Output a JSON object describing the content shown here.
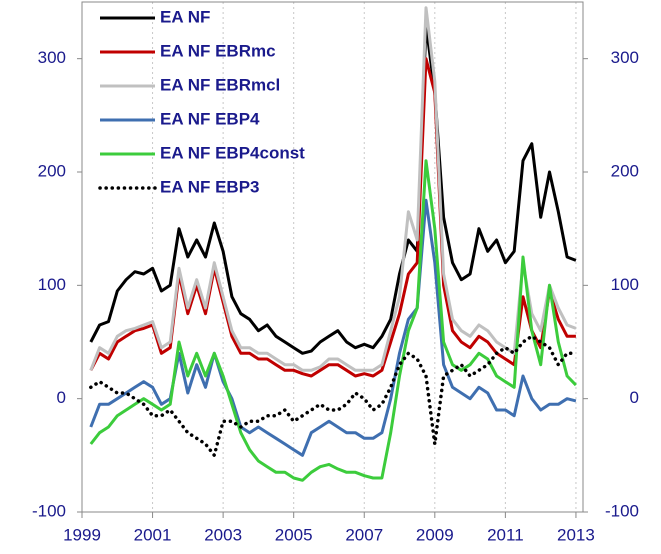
{
  "chart_data": {
    "type": "line",
    "x": [
      1999.25,
      1999.5,
      1999.75,
      2000,
      2000.25,
      2000.5,
      2000.75,
      2001,
      2001.25,
      2001.5,
      2001.75,
      2002,
      2002.25,
      2002.5,
      2002.75,
      2003,
      2003.25,
      2003.5,
      2003.75,
      2004,
      2004.25,
      2004.5,
      2004.75,
      2005,
      2005.25,
      2005.5,
      2005.75,
      2006,
      2006.25,
      2006.5,
      2006.75,
      2007,
      2007.25,
      2007.5,
      2007.75,
      2008,
      2008.25,
      2008.5,
      2008.75,
      2009,
      2009.25,
      2009.5,
      2009.75,
      2010,
      2010.25,
      2010.5,
      2010.75,
      2011,
      2011.25,
      2011.5,
      2011.75,
      2012,
      2012.25,
      2012.5,
      2012.75,
      2013
    ],
    "series": [
      {
        "name": "EA NF",
        "color": "#000000",
        "style": "solid",
        "values": [
          50,
          65,
          68,
          95,
          105,
          112,
          110,
          115,
          95,
          100,
          150,
          125,
          140,
          125,
          155,
          130,
          90,
          75,
          70,
          60,
          65,
          55,
          50,
          45,
          40,
          42,
          50,
          55,
          60,
          50,
          45,
          48,
          45,
          55,
          70,
          110,
          140,
          130,
          330,
          270,
          160,
          120,
          105,
          110,
          150,
          130,
          140,
          120,
          130,
          210,
          225,
          160,
          200,
          165,
          125,
          122
        ]
      },
      {
        "name": "EA NF EBRmc",
        "color": "#c00000",
        "style": "solid",
        "values": [
          25,
          40,
          35,
          50,
          55,
          60,
          62,
          65,
          40,
          45,
          110,
          75,
          100,
          75,
          115,
          85,
          55,
          40,
          40,
          35,
          35,
          30,
          25,
          25,
          22,
          20,
          25,
          30,
          30,
          25,
          20,
          22,
          20,
          25,
          50,
          75,
          110,
          120,
          300,
          270,
          100,
          60,
          50,
          45,
          55,
          50,
          40,
          35,
          30,
          90,
          60,
          45,
          95,
          70,
          55,
          55
        ]
      },
      {
        "name": "EA NF EBRmcl",
        "color": "#c0c0c0",
        "style": "solid",
        "values": [
          25,
          45,
          40,
          55,
          60,
          62,
          65,
          68,
          45,
          50,
          115,
          80,
          105,
          80,
          120,
          90,
          60,
          45,
          45,
          40,
          40,
          35,
          30,
          30,
          25,
          25,
          28,
          35,
          35,
          30,
          25,
          25,
          25,
          30,
          60,
          90,
          165,
          140,
          345,
          280,
          110,
          70,
          60,
          55,
          65,
          60,
          50,
          45,
          40,
          120,
          75,
          60,
          100,
          80,
          65,
          62
        ]
      },
      {
        "name": "EA NF EBP4",
        "color": "#3f6fb0",
        "style": "solid",
        "values": [
          -25,
          -5,
          -5,
          0,
          5,
          10,
          15,
          10,
          -5,
          0,
          40,
          5,
          30,
          10,
          40,
          15,
          0,
          -25,
          -30,
          -25,
          -30,
          -35,
          -40,
          -45,
          -50,
          -30,
          -25,
          -20,
          -25,
          -30,
          -30,
          -35,
          -35,
          -30,
          0,
          40,
          70,
          80,
          175,
          120,
          30,
          10,
          5,
          0,
          10,
          5,
          -10,
          -10,
          -15,
          20,
          0,
          -10,
          -5,
          -5,
          0,
          -2
        ]
      },
      {
        "name": "EA NF EBP4const",
        "color": "#3ccc3c",
        "style": "solid",
        "values": [
          -40,
          -30,
          -25,
          -15,
          -10,
          -5,
          0,
          -5,
          -10,
          -5,
          50,
          20,
          40,
          20,
          40,
          20,
          -5,
          -30,
          -45,
          -55,
          -60,
          -65,
          -65,
          -70,
          -72,
          -65,
          -60,
          -58,
          -62,
          -65,
          -65,
          -68,
          -70,
          -70,
          -30,
          20,
          60,
          80,
          210,
          150,
          50,
          30,
          25,
          30,
          40,
          35,
          20,
          15,
          10,
          125,
          60,
          30,
          100,
          50,
          20,
          12
        ]
      },
      {
        "name": "EA NF EBP3",
        "color": "#000000",
        "style": "dotted",
        "values": [
          10,
          15,
          10,
          5,
          5,
          0,
          -5,
          -15,
          -15,
          -10,
          -20,
          -30,
          -35,
          -40,
          -50,
          -20,
          -20,
          -25,
          -20,
          -20,
          -15,
          -15,
          -10,
          -20,
          -15,
          -10,
          -5,
          -10,
          -10,
          -5,
          5,
          0,
          -10,
          -5,
          10,
          30,
          40,
          35,
          20,
          -40,
          20,
          25,
          30,
          20,
          25,
          30,
          40,
          45,
          40,
          50,
          55,
          50,
          45,
          30,
          40,
          40
        ]
      }
    ],
    "xlim": [
      1999,
      2013.2
    ],
    "xticks": [
      1999,
      2001,
      2003,
      2005,
      2007,
      2009,
      2011,
      2013
    ],
    "ylim": [
      -100,
      350
    ],
    "yticks": [
      -100,
      0,
      100,
      200,
      300
    ],
    "y2lim": [
      -100,
      350
    ],
    "y2ticks": [
      -100,
      0,
      100,
      200,
      300
    ],
    "grid": true,
    "legend": "top-left"
  }
}
